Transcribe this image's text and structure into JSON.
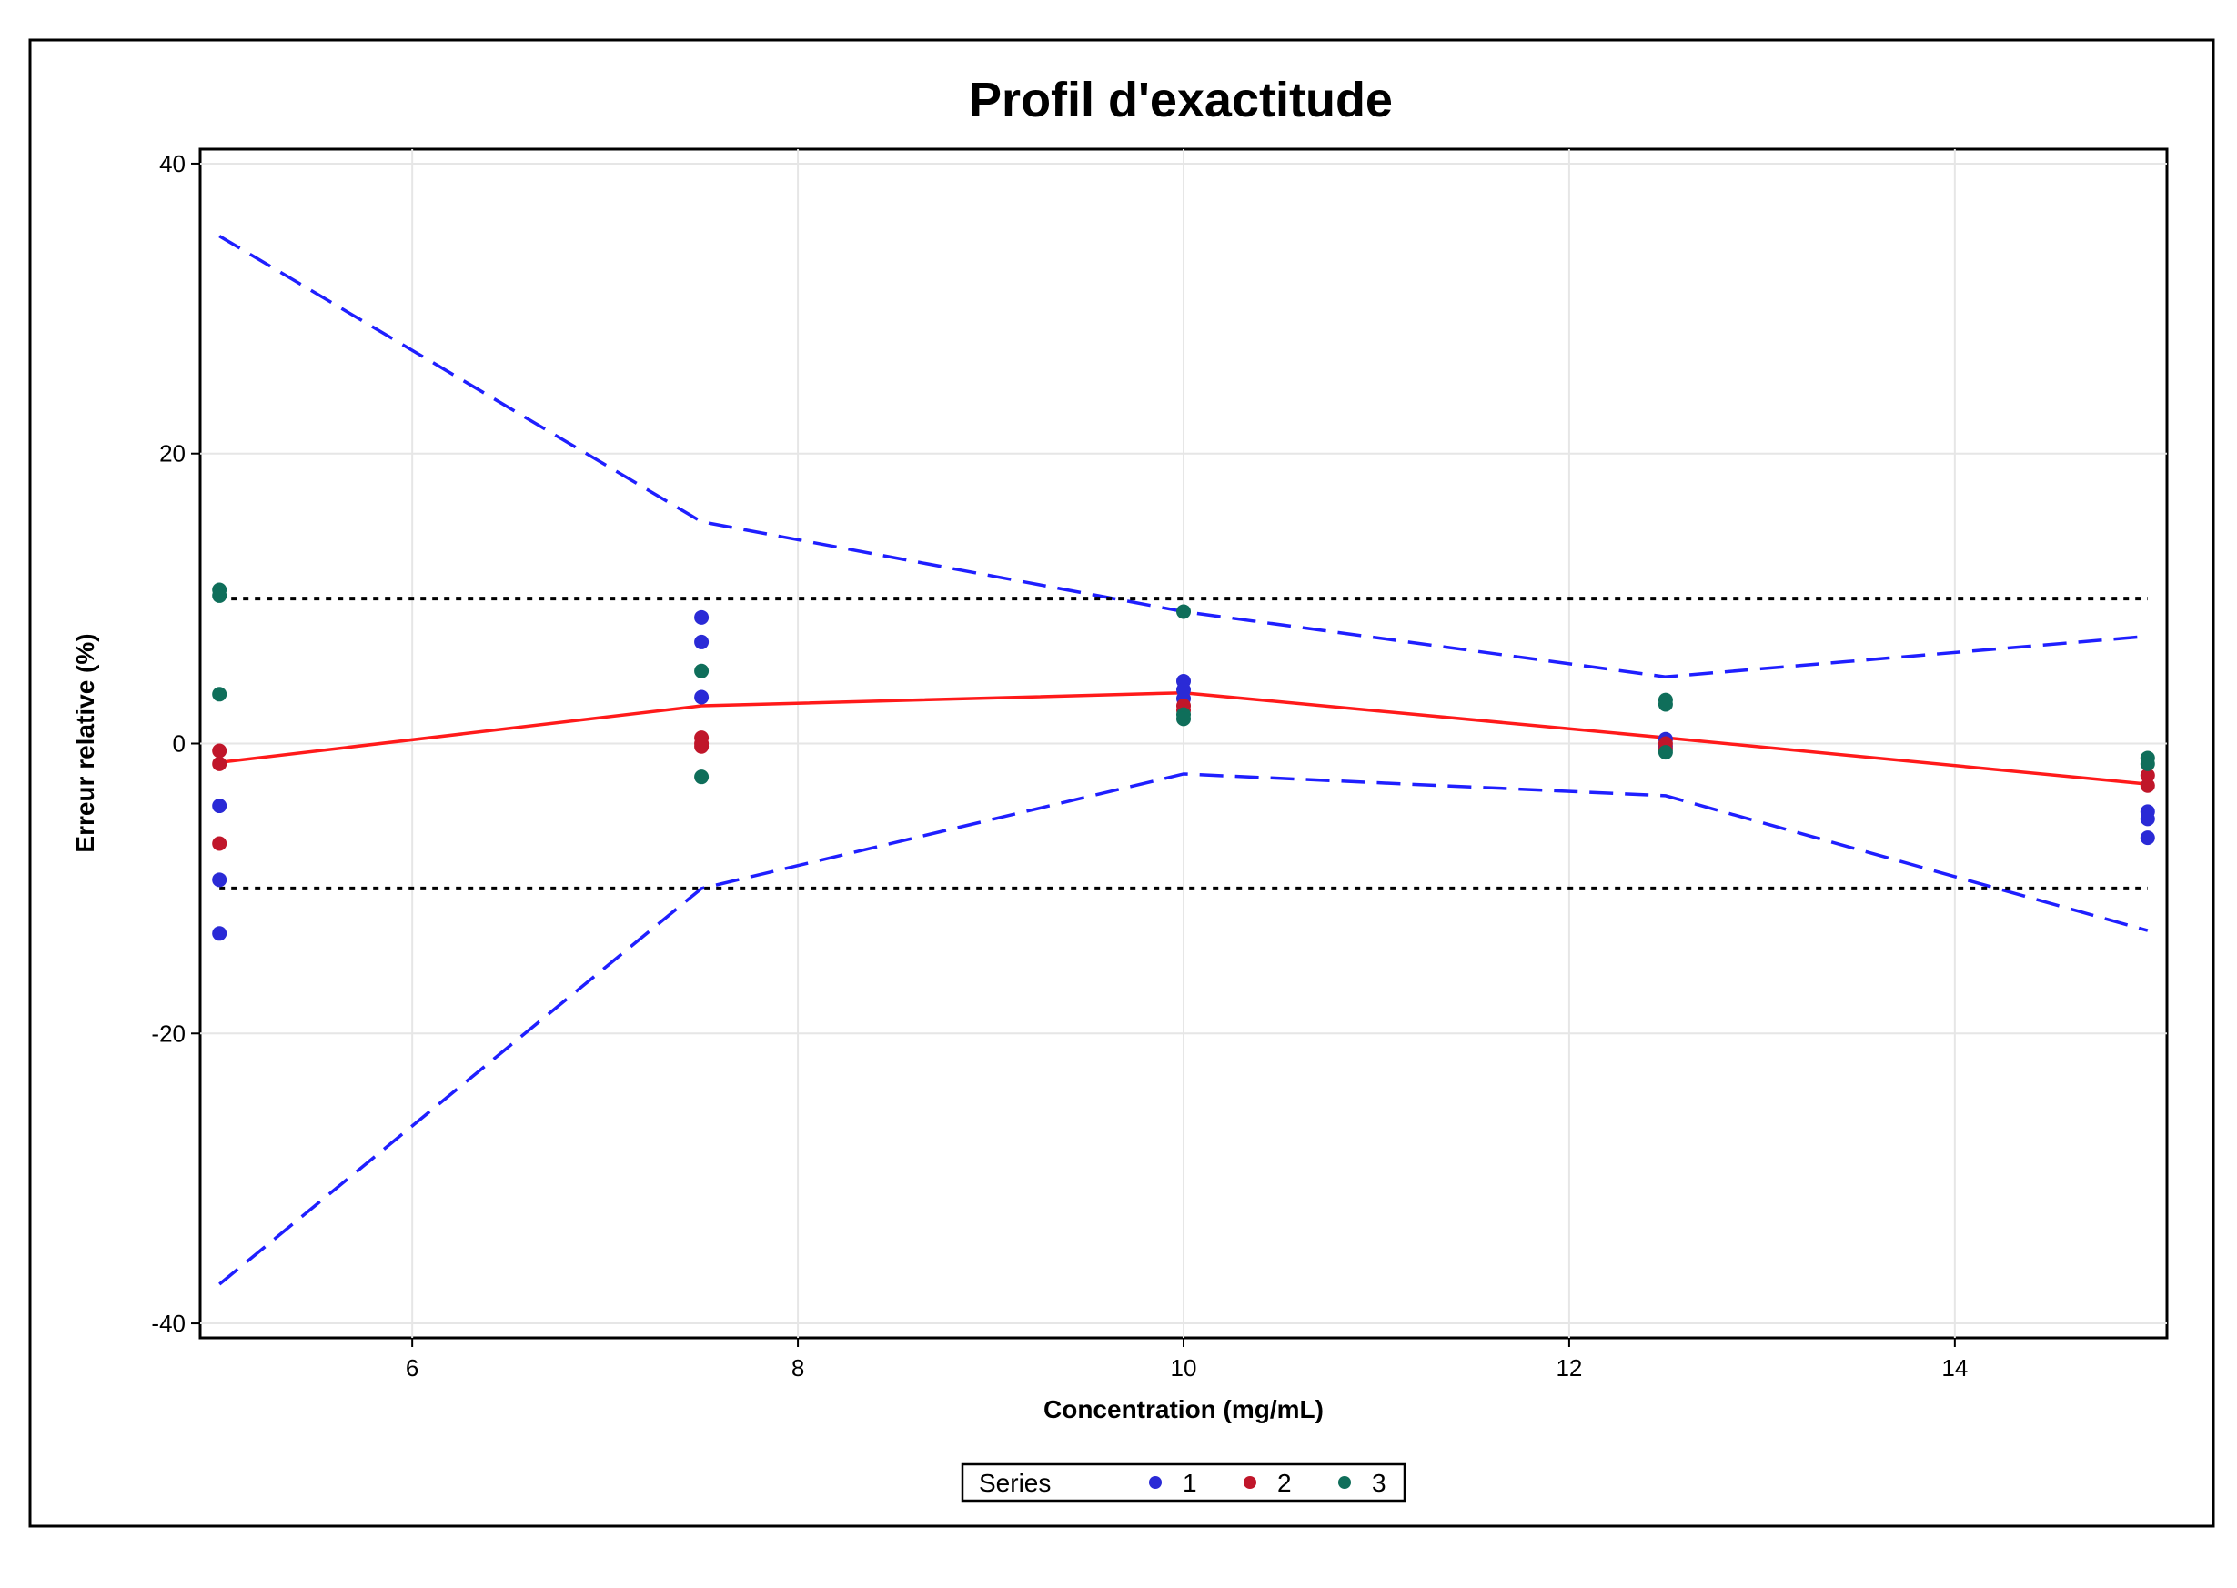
{
  "chart_data": {
    "type": "scatter",
    "title": "Profil d'exactitude",
    "xlabel": "Concentration (mg/mL)",
    "ylabel": "Erreur relative (%)",
    "xlim": [
      4.9,
      15.1
    ],
    "ylim": [
      -41,
      41
    ],
    "xticks": [
      6,
      8,
      10,
      12,
      14
    ],
    "yticks": [
      40,
      20,
      0,
      -20,
      -40
    ],
    "xtick_labels": [
      "6",
      "8",
      "10",
      "12",
      "14"
    ],
    "ytick_labels": [
      "40",
      "20",
      "0",
      "-20",
      "-40"
    ],
    "grid": true,
    "legend": {
      "title": "Series",
      "placement": "bottom-center",
      "entries": [
        {
          "label": "1",
          "color": "#2a2ad6"
        },
        {
          "label": "2",
          "color": "#c0162a"
        },
        {
          "label": "3",
          "color": "#0f6e5a"
        }
      ]
    },
    "series": [
      {
        "name": "1",
        "color": "#2a2ad6",
        "points": [
          [
            5,
            -4.3
          ],
          [
            5,
            -9.4
          ],
          [
            5,
            -13.1
          ],
          [
            7.5,
            8.7
          ],
          [
            7.5,
            7.0
          ],
          [
            7.5,
            3.2
          ],
          [
            10,
            4.3
          ],
          [
            10,
            3.7
          ],
          [
            10,
            3.1
          ],
          [
            12.5,
            0.3
          ],
          [
            12.5,
            -0.2
          ],
          [
            15,
            -4.7
          ],
          [
            15,
            -5.2
          ],
          [
            15,
            -6.5
          ]
        ]
      },
      {
        "name": "2",
        "color": "#c0162a",
        "points": [
          [
            5,
            -0.5
          ],
          [
            5,
            -1.4
          ],
          [
            5,
            -6.9
          ],
          [
            7.5,
            0.4
          ],
          [
            7.5,
            0.0
          ],
          [
            7.5,
            -0.2
          ],
          [
            10,
            2.6
          ],
          [
            10,
            2.3
          ],
          [
            12.5,
            0.0
          ],
          [
            12.5,
            -0.4
          ],
          [
            15,
            -2.2
          ],
          [
            15,
            -2.9
          ]
        ]
      },
      {
        "name": "3",
        "color": "#0f6e5a",
        "points": [
          [
            5,
            10.6
          ],
          [
            5,
            10.2
          ],
          [
            5,
            3.4
          ],
          [
            7.5,
            5.0
          ],
          [
            7.5,
            -2.3
          ],
          [
            10,
            9.1
          ],
          [
            10,
            2.0
          ],
          [
            10,
            1.7
          ],
          [
            12.5,
            3.0
          ],
          [
            12.5,
            2.7
          ],
          [
            12.5,
            -0.6
          ],
          [
            15,
            -1.0
          ],
          [
            15,
            -1.4
          ]
        ]
      }
    ],
    "lines": [
      {
        "kind": "mean_bias",
        "style": "solid",
        "color": "#ff1a1a",
        "x": [
          5,
          7.5,
          10,
          12.5,
          15
        ],
        "y": [
          -1.3,
          2.6,
          3.5,
          0.4,
          -2.8
        ]
      },
      {
        "kind": "upper_tolerance",
        "style": "dashed",
        "color": "#1f1fff",
        "x": [
          5,
          7.5,
          10,
          12.5,
          15
        ],
        "y": [
          35,
          15.3,
          9.1,
          4.6,
          7.4
        ]
      },
      {
        "kind": "lower_tolerance",
        "style": "dashed",
        "color": "#1f1fff",
        "x": [
          5,
          7.5,
          10,
          12.5,
          15
        ],
        "y": [
          -37.3,
          -10.0,
          -2.1,
          -3.6,
          -12.9
        ]
      },
      {
        "kind": "acceptance_upper",
        "style": "dotted",
        "color": "#000000",
        "x": [
          5,
          15
        ],
        "y": [
          10,
          10
        ]
      },
      {
        "kind": "acceptance_lower",
        "style": "dotted",
        "color": "#000000",
        "x": [
          5,
          15
        ],
        "y": [
          -10,
          -10
        ]
      }
    ]
  }
}
